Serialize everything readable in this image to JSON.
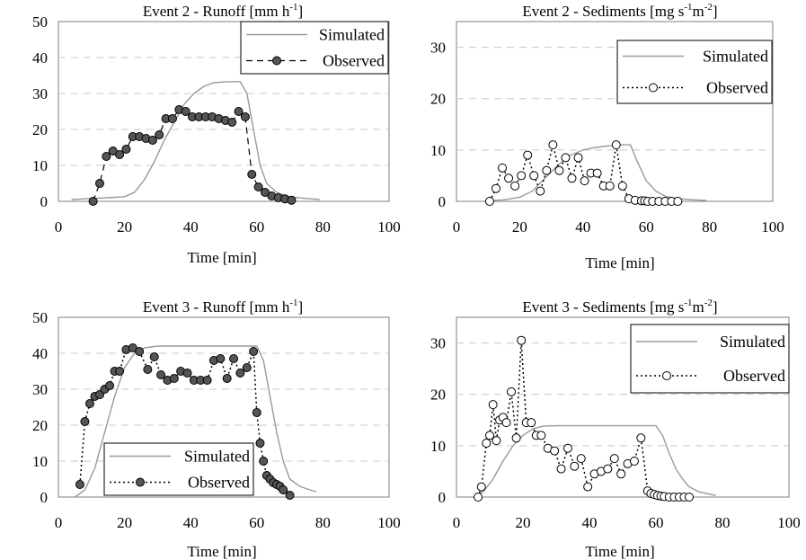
{
  "chart_data": [
    {
      "type": "line",
      "title": "Event 2 - Runoff [mm h-1]",
      "title_main": "Event 2 - Runoff [mm h",
      "title_sup": "-1",
      "title_end": "]",
      "xlabel": "Time [min]",
      "xlim": [
        0,
        100
      ],
      "ylim": [
        0,
        50
      ],
      "xticks": [
        "0",
        "20",
        "40",
        "60",
        "80",
        "100"
      ],
      "yticks": [
        "0",
        "10",
        "20",
        "30",
        "40",
        "50"
      ],
      "legend_position": "top-right",
      "series": [
        {
          "name": "Simulated",
          "style": "solid",
          "color": "#9a9a9a",
          "x": [
            4,
            10,
            15,
            20,
            23,
            26,
            29,
            32,
            35,
            38,
            41,
            44,
            47,
            50,
            53,
            55,
            57,
            59,
            61,
            63,
            66,
            70,
            75,
            79
          ],
          "y": [
            0.5,
            0.8,
            1.0,
            1.3,
            2.5,
            6,
            11,
            17,
            22,
            27,
            30,
            32,
            33,
            33.2,
            33.3,
            33.3,
            30,
            20,
            10,
            5,
            2.5,
            1.2,
            0.8,
            0.5
          ]
        },
        {
          "name": "Observed",
          "style": "dashed-filled",
          "color": "#555555",
          "x": [
            10.5,
            12.5,
            14.5,
            16.5,
            18.5,
            20.5,
            22.5,
            24.5,
            26.5,
            28.5,
            30.5,
            32.5,
            34.5,
            36.5,
            38.5,
            40.5,
            42.5,
            44.5,
            46.5,
            48.5,
            50.5,
            52.5,
            54.5,
            56.5,
            58.5,
            60.5,
            62.5,
            64.5,
            66.5,
            68.5,
            70.5
          ],
          "y": [
            0,
            5,
            12.5,
            14,
            13,
            14.5,
            18,
            18,
            17.5,
            17,
            18.5,
            23,
            23,
            25.5,
            25,
            23.5,
            23.5,
            23.5,
            23.5,
            23,
            22.5,
            22,
            25,
            23.5,
            7.5,
            4,
            2.5,
            1.5,
            1,
            0.7,
            0.3
          ]
        }
      ]
    },
    {
      "type": "line",
      "title": "Event 2 - Sediments [mg s-1m-2]",
      "title_main": "Event 2 - Sediments [mg s",
      "title_sup": "-1",
      "title_mid": "m",
      "title_sup2": "-2",
      "title_end": "]",
      "xlabel": "Time [min]",
      "xlim": [
        0,
        100
      ],
      "ylim": [
        0,
        35
      ],
      "xticks": [
        "0",
        "20",
        "40",
        "60",
        "80",
        "100"
      ],
      "yticks": [
        "0",
        "10",
        "20",
        "30"
      ],
      "legend_position": "top-right",
      "series": [
        {
          "name": "Simulated",
          "style": "solid",
          "color": "#9a9a9a",
          "x": [
            9,
            15,
            20,
            24,
            28,
            32,
            36,
            40,
            44,
            48,
            52,
            55,
            57,
            60,
            63,
            66,
            70,
            75,
            79
          ],
          "y": [
            0.1,
            0.3,
            0.8,
            2,
            4.5,
            7,
            9,
            10,
            10.5,
            10.8,
            11,
            11,
            8,
            4,
            2,
            1,
            0.5,
            0.3,
            0.2
          ]
        },
        {
          "name": "Observed",
          "style": "dotted-open",
          "color": "#000000",
          "x": [
            10.5,
            12.5,
            14.5,
            16.5,
            18.5,
            20.5,
            22.5,
            24.5,
            26.5,
            28.5,
            30.5,
            32.5,
            34.5,
            36.5,
            38.5,
            40.5,
            42.5,
            44.5,
            46.5,
            48.5,
            50.5,
            52.5,
            54.5,
            56.5,
            58.5,
            59.5,
            60.5,
            62,
            64,
            66,
            68,
            70
          ],
          "y": [
            0,
            2.5,
            6.5,
            4.5,
            3,
            5,
            9,
            5,
            2,
            6,
            11,
            6,
            8.5,
            4.5,
            8.5,
            4,
            5.5,
            5.5,
            3,
            3,
            11,
            3,
            0.5,
            0.2,
            0.1,
            0.1,
            0,
            0,
            0,
            0,
            0,
            0
          ]
        }
      ]
    },
    {
      "type": "line",
      "title": "Event 3 - Runoff [mm h-1]",
      "title_main": "Event 3 - Runoff [mm h",
      "title_sup": "-1",
      "title_end": "]",
      "xlabel": "Time [min]",
      "xlim": [
        0,
        100
      ],
      "ylim": [
        0,
        50
      ],
      "xticks": [
        "0",
        "20",
        "40",
        "60",
        "80",
        "100"
      ],
      "yticks": [
        "0",
        "10",
        "20",
        "30",
        "40",
        "50"
      ],
      "legend_position": "bottom-center",
      "series": [
        {
          "name": "Simulated",
          "style": "solid",
          "color": "#9a9a9a",
          "x": [
            5,
            8,
            11,
            14,
            17,
            20,
            23,
            26,
            30,
            35,
            40,
            45,
            50,
            55,
            58,
            60,
            62,
            64,
            66,
            68,
            70,
            73,
            76,
            78
          ],
          "y": [
            0,
            2,
            8,
            18,
            28,
            36,
            40,
            41.5,
            42,
            42,
            42,
            42,
            42,
            42,
            42,
            42,
            38,
            28,
            18,
            10,
            5,
            3,
            2,
            1.5
          ]
        },
        {
          "name": "Observed",
          "style": "dotted-filled",
          "color": "#555555",
          "x": [
            6.5,
            8,
            9.5,
            11,
            12.5,
            14,
            15.5,
            17,
            18.5,
            20.5,
            22.5,
            24.5,
            27,
            29,
            31,
            33,
            35,
            37,
            39,
            41,
            43,
            45,
            47,
            49,
            51,
            53,
            55,
            57,
            59,
            60,
            61,
            62,
            63,
            64,
            65,
            66,
            67,
            68,
            70
          ],
          "y": [
            3.5,
            21,
            26,
            28,
            28.5,
            30,
            31,
            35,
            35,
            41,
            41.5,
            40.5,
            35.5,
            39,
            34,
            32.5,
            33,
            35,
            34.5,
            32.5,
            32.5,
            32.5,
            38,
            38.5,
            33,
            38.5,
            34.5,
            36,
            40.5,
            23.5,
            15,
            10,
            6,
            5,
            4,
            3.5,
            3,
            2,
            0.5
          ]
        }
      ]
    },
    {
      "type": "line",
      "title": "Event 3 - Sediments [mg s-1m-2]",
      "title_main": "Event 3 - Sediments [mg s",
      "title_sup": "-1",
      "title_mid": "m",
      "title_sup2": "-2",
      "title_end": "]",
      "xlabel": "Time [min]",
      "xlim": [
        0,
        100
      ],
      "ylim": [
        0,
        35
      ],
      "xticks": [
        "0",
        "20",
        "40",
        "60",
        "80",
        "100"
      ],
      "yticks": [
        "0",
        "10",
        "20",
        "30"
      ],
      "legend_position": "top-right",
      "series": [
        {
          "name": "Simulated",
          "style": "solid",
          "color": "#9a9a9a",
          "x": [
            5,
            8,
            11,
            14,
            17,
            20,
            23,
            26,
            30,
            35,
            40,
            45,
            50,
            55,
            58,
            60,
            62,
            64,
            66,
            68,
            70,
            73,
            76,
            78
          ],
          "y": [
            0,
            1,
            3.5,
            7,
            10,
            12,
            13.3,
            13.8,
            13.9,
            13.9,
            13.9,
            13.9,
            13.9,
            13.9,
            13.9,
            13.9,
            12,
            8.5,
            5.5,
            3.5,
            2,
            1,
            0.6,
            0.3
          ]
        },
        {
          "name": "Observed",
          "style": "dotted-open",
          "color": "#000000",
          "x": [
            6.5,
            7.5,
            9,
            10,
            11,
            12,
            13,
            14,
            15,
            16.5,
            18,
            19.5,
            21,
            22.5,
            24,
            25.5,
            27.5,
            29.5,
            31.5,
            33.5,
            35.5,
            37.5,
            39.5,
            41.5,
            43.5,
            45.5,
            47.5,
            49.5,
            51.5,
            53.5,
            55.5,
            57.5,
            58.5,
            59.5,
            60.5,
            61.5,
            62.5,
            64,
            65.5,
            67,
            68.5,
            70
          ],
          "y": [
            0,
            2,
            10.5,
            12,
            18,
            11,
            15,
            15.5,
            14.5,
            20.5,
            11.5,
            30.5,
            14.5,
            14.5,
            12,
            12,
            9.5,
            9,
            5.5,
            9.5,
            6,
            7.5,
            2,
            4.5,
            5,
            5.5,
            7.5,
            4.5,
            6.5,
            7,
            11.5,
            1.2,
            0.7,
            0.5,
            0.3,
            0.2,
            0.1,
            0,
            0,
            0,
            0,
            0
          ]
        }
      ]
    }
  ]
}
